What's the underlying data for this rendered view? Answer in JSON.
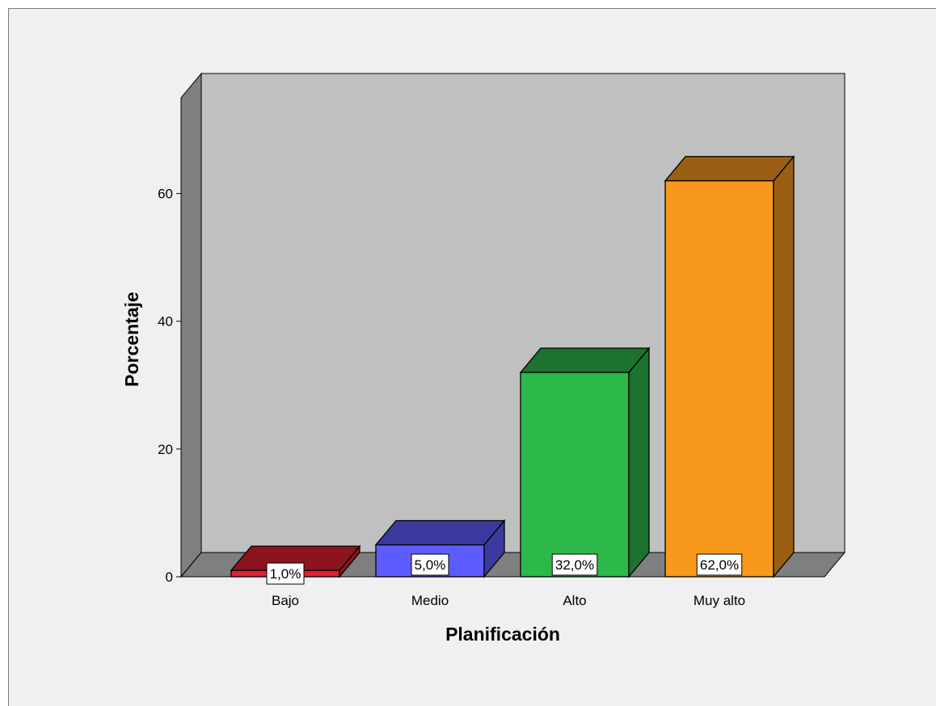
{
  "chart_data": {
    "type": "bar",
    "style": "3d",
    "categories": [
      "Bajo",
      "Medio",
      "Alto",
      "Muy alto"
    ],
    "values": [
      1.0,
      5.0,
      32.0,
      62.0
    ],
    "data_labels": [
      "1,0%",
      "5,0%",
      "32,0%",
      "62,0%"
    ],
    "colors": [
      "#e2212f",
      "#5d5dff",
      "#2db84a",
      "#f8991e"
    ],
    "xlabel": "Planificación",
    "ylabel": "Porcentaje",
    "ylim": [
      0,
      75
    ],
    "yticks": [
      0,
      20,
      40,
      60
    ],
    "ytick_labels": [
      "0",
      "20",
      "40",
      "60"
    ],
    "wall_color": "#c0c0c0",
    "floor_color": "#7f7f7f",
    "grid": false
  }
}
